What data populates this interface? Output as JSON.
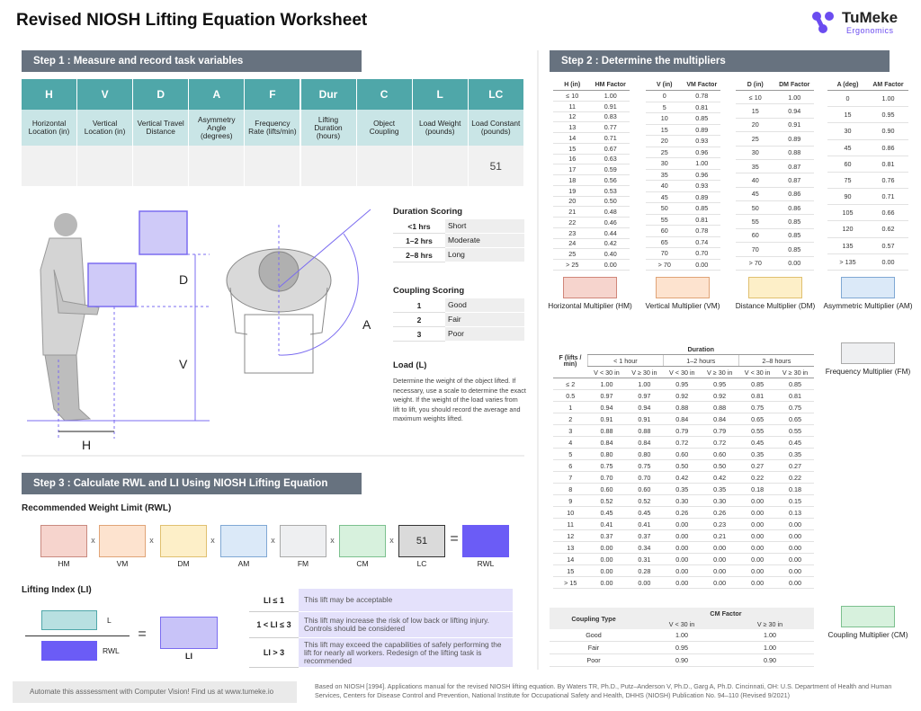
{
  "header": {
    "title": "Revised NIOSH Lifting Equation Worksheet",
    "logo_name": "TuMeke",
    "logo_sub": "Ergonomics"
  },
  "step1": {
    "heading": "Step 1 : Measure and record task variables",
    "columns": [
      {
        "code": "H",
        "label": "Horizontal Location (in)"
      },
      {
        "code": "V",
        "label": "Vertical Location (in)"
      },
      {
        "code": "D",
        "label": "Vertical Travel Distance"
      },
      {
        "code": "A",
        "label": "Asymmetry Angle (degrees)"
      },
      {
        "code": "F",
        "label": "Frequency Rate (lifts/min)"
      },
      {
        "code": "Dur",
        "label": "Lifting Duration (hours)"
      },
      {
        "code": "C",
        "label": "Object Coupling"
      },
      {
        "code": "L",
        "label": "Load Weight (pounds)"
      },
      {
        "code": "LC",
        "label": "Load Constant (pounds)"
      }
    ],
    "lc_value": "51"
  },
  "figure": {
    "labels": [
      "D",
      "V",
      "H",
      "A"
    ]
  },
  "duration_scoring": {
    "title": "Duration Scoring",
    "rows": [
      [
        "<1 hrs",
        "Short"
      ],
      [
        "1–2 hrs",
        "Moderate"
      ],
      [
        "2–8 hrs",
        "Long"
      ]
    ]
  },
  "coupling_scoring": {
    "title": "Coupling Scoring",
    "rows": [
      [
        "1",
        "Good"
      ],
      [
        "2",
        "Fair"
      ],
      [
        "3",
        "Poor"
      ]
    ]
  },
  "load": {
    "title": "Load (L)",
    "text": "Determine the weight of the object lifted. If necessary, use a scale to determine the exact weight. If the weight of the load varies from lift to lift, you should record the average and maximum weights lifted."
  },
  "step2": {
    "heading": "Step 2 : Determine the multipliers",
    "tables": [
      {
        "headers": [
          "H (in)",
          "HM Factor"
        ],
        "swatch": "Horizontal Multiplier (HM)",
        "rows": [
          [
            "≤ 10",
            "1.00"
          ],
          [
            "11",
            "0.91"
          ],
          [
            "12",
            "0.83"
          ],
          [
            "13",
            "0.77"
          ],
          [
            "14",
            "0.71"
          ],
          [
            "15",
            "0.67"
          ],
          [
            "16",
            "0.63"
          ],
          [
            "17",
            "0.59"
          ],
          [
            "18",
            "0.56"
          ],
          [
            "19",
            "0.53"
          ],
          [
            "20",
            "0.50"
          ],
          [
            "21",
            "0.48"
          ],
          [
            "22",
            "0.46"
          ],
          [
            "23",
            "0.44"
          ],
          [
            "24",
            "0.42"
          ],
          [
            "25",
            "0.40"
          ],
          [
            "> 25",
            "0.00"
          ]
        ]
      },
      {
        "headers": [
          "V (in)",
          "VM Factor"
        ],
        "swatch": "Vertical Multiplier (VM)",
        "rows": [
          [
            "0",
            "0.78"
          ],
          [
            "5",
            "0.81"
          ],
          [
            "10",
            "0.85"
          ],
          [
            "15",
            "0.89"
          ],
          [
            "20",
            "0.93"
          ],
          [
            "25",
            "0.96"
          ],
          [
            "30",
            "1.00"
          ],
          [
            "35",
            "0.96"
          ],
          [
            "40",
            "0.93"
          ],
          [
            "45",
            "0.89"
          ],
          [
            "50",
            "0.85"
          ],
          [
            "55",
            "0.81"
          ],
          [
            "60",
            "0.78"
          ],
          [
            "65",
            "0.74"
          ],
          [
            "70",
            "0.70"
          ],
          [
            "> 70",
            "0.00"
          ]
        ]
      },
      {
        "headers": [
          "D (in)",
          "DM Factor"
        ],
        "swatch": "Distance Multiplier (DM)",
        "rows": [
          [
            "≤ 10",
            "1.00"
          ],
          [
            "15",
            "0.94"
          ],
          [
            "20",
            "0.91"
          ],
          [
            "25",
            "0.89"
          ],
          [
            "30",
            "0.88"
          ],
          [
            "35",
            "0.87"
          ],
          [
            "40",
            "0.87"
          ],
          [
            "45",
            "0.86"
          ],
          [
            "50",
            "0.86"
          ],
          [
            "55",
            "0.85"
          ],
          [
            "60",
            "0.85"
          ],
          [
            "70",
            "0.85"
          ],
          [
            "> 70",
            "0.00"
          ]
        ]
      },
      {
        "headers": [
          "A (deg)",
          "AM Factor"
        ],
        "swatch": "Asymmetric Multiplier (AM)",
        "rows": [
          [
            "0",
            "1.00"
          ],
          [
            "15",
            "0.95"
          ],
          [
            "30",
            "0.90"
          ],
          [
            "45",
            "0.86"
          ],
          [
            "60",
            "0.81"
          ],
          [
            "75",
            "0.76"
          ],
          [
            "90",
            "0.71"
          ],
          [
            "105",
            "0.66"
          ],
          [
            "120",
            "0.62"
          ],
          [
            "135",
            "0.57"
          ],
          [
            "> 135",
            "0.00"
          ]
        ]
      }
    ],
    "frequency": {
      "corner": "F (lifts / min)",
      "group": "Duration",
      "durations": [
        "< 1 hour",
        "1–2 hours",
        "2–8 hours"
      ],
      "subheaders": [
        "V < 30 in",
        "V ≥ 30 in",
        "V < 30 in",
        "V ≥ 30 in",
        "V < 30 in",
        "V ≥ 30 in"
      ],
      "swatch": "Frequency Multiplier (FM)",
      "rows": [
        [
          "≤ 2",
          "1.00",
          "1.00",
          "0.95",
          "0.95",
          "0.85",
          "0.85"
        ],
        [
          "0.5",
          "0.97",
          "0.97",
          "0.92",
          "0.92",
          "0.81",
          "0.81"
        ],
        [
          "1",
          "0.94",
          "0.94",
          "0.88",
          "0.88",
          "0.75",
          "0.75"
        ],
        [
          "2",
          "0.91",
          "0.91",
          "0.84",
          "0.84",
          "0.65",
          "0.65"
        ],
        [
          "3",
          "0.88",
          "0.88",
          "0.79",
          "0.79",
          "0.55",
          "0.55"
        ],
        [
          "4",
          "0.84",
          "0.84",
          "0.72",
          "0.72",
          "0.45",
          "0.45"
        ],
        [
          "5",
          "0.80",
          "0.80",
          "0.60",
          "0.60",
          "0.35",
          "0.35"
        ],
        [
          "6",
          "0.75",
          "0.75",
          "0.50",
          "0.50",
          "0.27",
          "0.27"
        ],
        [
          "7",
          "0.70",
          "0.70",
          "0.42",
          "0.42",
          "0.22",
          "0.22"
        ],
        [
          "8",
          "0.60",
          "0.60",
          "0.35",
          "0.35",
          "0.18",
          "0.18"
        ],
        [
          "9",
          "0.52",
          "0.52",
          "0.30",
          "0.30",
          "0.00",
          "0.15"
        ],
        [
          "10",
          "0.45",
          "0.45",
          "0.26",
          "0.26",
          "0.00",
          "0.13"
        ],
        [
          "11",
          "0.41",
          "0.41",
          "0.00",
          "0.23",
          "0.00",
          "0.00"
        ],
        [
          "12",
          "0.37",
          "0.37",
          "0.00",
          "0.21",
          "0.00",
          "0.00"
        ],
        [
          "13",
          "0.00",
          "0.34",
          "0.00",
          "0.00",
          "0.00",
          "0.00"
        ],
        [
          "14",
          "0.00",
          "0.31",
          "0.00",
          "0.00",
          "0.00",
          "0.00"
        ],
        [
          "15",
          "0.00",
          "0.28",
          "0.00",
          "0.00",
          "0.00",
          "0.00"
        ],
        [
          "> 15",
          "0.00",
          "0.00",
          "0.00",
          "0.00",
          "0.00",
          "0.00"
        ]
      ]
    },
    "coupling": {
      "headers": [
        "Coupling Type",
        "CM Factor"
      ],
      "subheaders": [
        "V < 30 in",
        "V ≥ 30 in"
      ],
      "swatch": "Coupling Multiplier (CM)",
      "rows": [
        [
          "Good",
          "1.00",
          "1.00"
        ],
        [
          "Fair",
          "0.95",
          "1.00"
        ],
        [
          "Poor",
          "0.90",
          "0.90"
        ]
      ]
    }
  },
  "step3": {
    "heading": "Step 3 : Calculate RWL and LI Using NIOSH Lifting Equation",
    "rwl_title": "Recommended Weight Limit (RWL)",
    "terms": [
      "HM",
      "VM",
      "DM",
      "AM",
      "FM",
      "CM",
      "LC"
    ],
    "lc_value": "51",
    "result": "RWL",
    "times": "x",
    "equals": "=",
    "li_title": "Lifting Index (LI)",
    "numerator": "L",
    "denominator": "RWL",
    "li_result": "LI",
    "li_table": [
      [
        "LI ≤ 1",
        "This lift may be acceptable"
      ],
      [
        "1 < LI ≤ 3",
        "This lift may increase the risk of low back or lifting injury. Controls should be considered"
      ],
      [
        "LI > 3",
        "This lift may exceed the capabilities of safely performing the lift for nearly all workers. Redesign of the lifting task is recommended"
      ]
    ]
  },
  "footer": {
    "cta": "Automate this asssessment with Computer Vision!  Find us at www.tumeke.io",
    "citation": "Based on NIOSH [1994]. Applications manual for the revised NIOSH lifting equation. By Waters TR, Ph.D., Putz–Anderson V, Ph.D., Garg A, Ph.D. Cincinnati, OH: U.S. Department of Health and Human Services, Centers for Disease Control and Prevention, National Institute for Occupational Safety and Health, DHHS (NIOSH) Publication No. 94–110 (Revised 9/2021)"
  }
}
